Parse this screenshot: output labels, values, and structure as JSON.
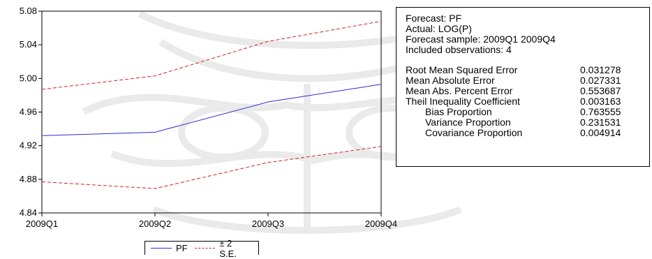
{
  "chart_data": {
    "type": "line",
    "categories": [
      "2009Q1",
      "2009Q2",
      "2009Q3",
      "2009Q4"
    ],
    "series": [
      {
        "name": "PF",
        "values": [
          4.932,
          4.936,
          4.972,
          4.993
        ],
        "color": "#2b2bd6",
        "style": "solid"
      },
      {
        "name": "± 2 S.E.",
        "values": [
          4.987,
          5.003,
          5.044,
          5.068
        ],
        "color": "#d42020",
        "style": "dashed",
        "role": "upper"
      },
      {
        "name": "± 2 S.E.",
        "values": [
          4.877,
          4.869,
          4.9,
          4.919
        ],
        "color": "#d42020",
        "style": "dashed",
        "role": "lower"
      }
    ],
    "yticks": [
      "4.84",
      "4.88",
      "4.92",
      "4.96",
      "5.00",
      "5.04",
      "5.08"
    ],
    "ylim": [
      4.84,
      5.08
    ],
    "title": "",
    "xlabel": "",
    "ylabel": "",
    "legend_position": "bottom",
    "grid": false
  },
  "legend": {
    "pf_label": "PF",
    "se_label": "± 2 S.E."
  },
  "stats": {
    "header": [
      "Forecast: PF",
      "Actual: LOG(P)",
      "Forecast sample: 2009Q1 2009Q4",
      "Included observations: 4"
    ],
    "metrics": [
      {
        "label": "Root Mean Squared Error",
        "value": "0.031278",
        "indent": false
      },
      {
        "label": "Mean Absolute Error",
        "value": "0.027331",
        "indent": false
      },
      {
        "label": "Mean Abs. Percent Error",
        "value": "0.553687",
        "indent": false
      },
      {
        "label": "Theil Inequality Coefficient",
        "value": "0.003163",
        "indent": false
      },
      {
        "label": "Bias Proportion",
        "value": "0.763555",
        "indent": true
      },
      {
        "label": "Variance Proportion",
        "value": "0.231531",
        "indent": true
      },
      {
        "label": "Covariance Proportion",
        "value": "0.004914",
        "indent": true
      }
    ]
  }
}
